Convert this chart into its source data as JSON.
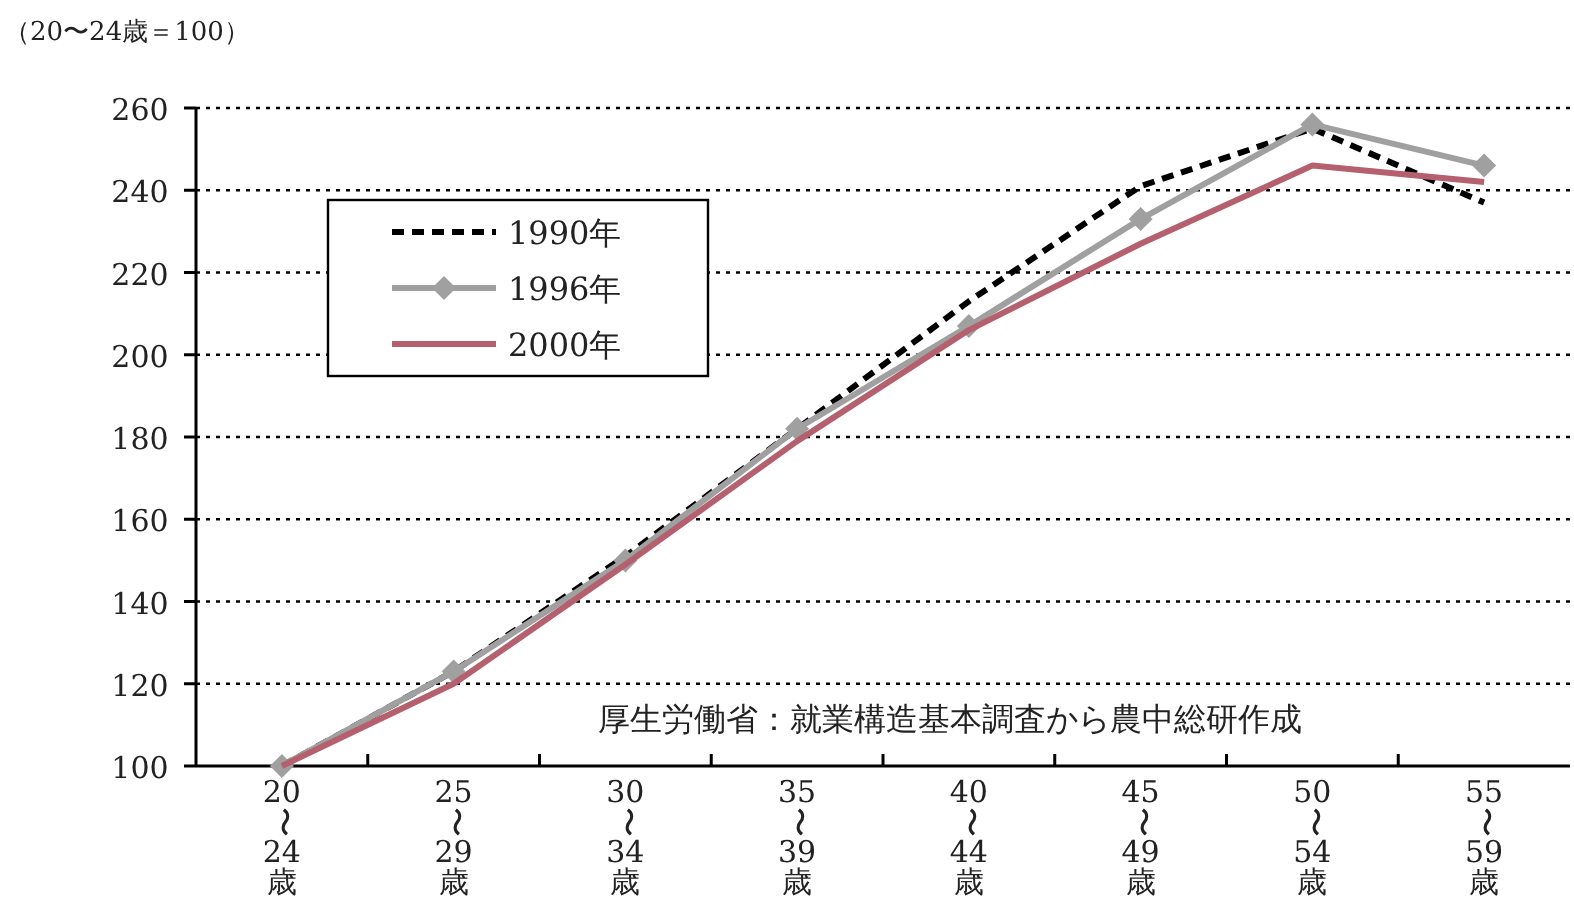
{
  "chart_data": {
    "type": "line",
    "ylabel": "（20〜24歳＝100）",
    "categories": [
      "20〜24歳",
      "25〜29歳",
      "30〜34歳",
      "35〜39歳",
      "40〜44歳",
      "45〜49歳",
      "50〜54歳",
      "55〜59歳"
    ],
    "series": [
      {
        "name": "1990年",
        "color": "#000000",
        "line_style": "dashed",
        "marker": "none",
        "values": [
          100,
          123,
          151,
          182,
          213,
          241,
          255,
          237
        ]
      },
      {
        "name": "1996年",
        "color": "#a0a0a0",
        "line_style": "solid",
        "marker": "diamond",
        "values": [
          100,
          123,
          150,
          182,
          207,
          233,
          256,
          246
        ]
      },
      {
        "name": "2000年",
        "color": "#b5606e",
        "line_style": "solid",
        "marker": "none",
        "values": [
          100,
          120,
          149,
          179,
          206,
          227,
          246,
          242
        ]
      }
    ],
    "ylim": [
      100,
      260
    ],
    "yticks": [
      100,
      120,
      140,
      160,
      180,
      200,
      220,
      240,
      260
    ],
    "grid": "y",
    "legend": "top left",
    "annotations": [
      "厚生労働省：就業構造基本調査から農中総研作成"
    ]
  }
}
